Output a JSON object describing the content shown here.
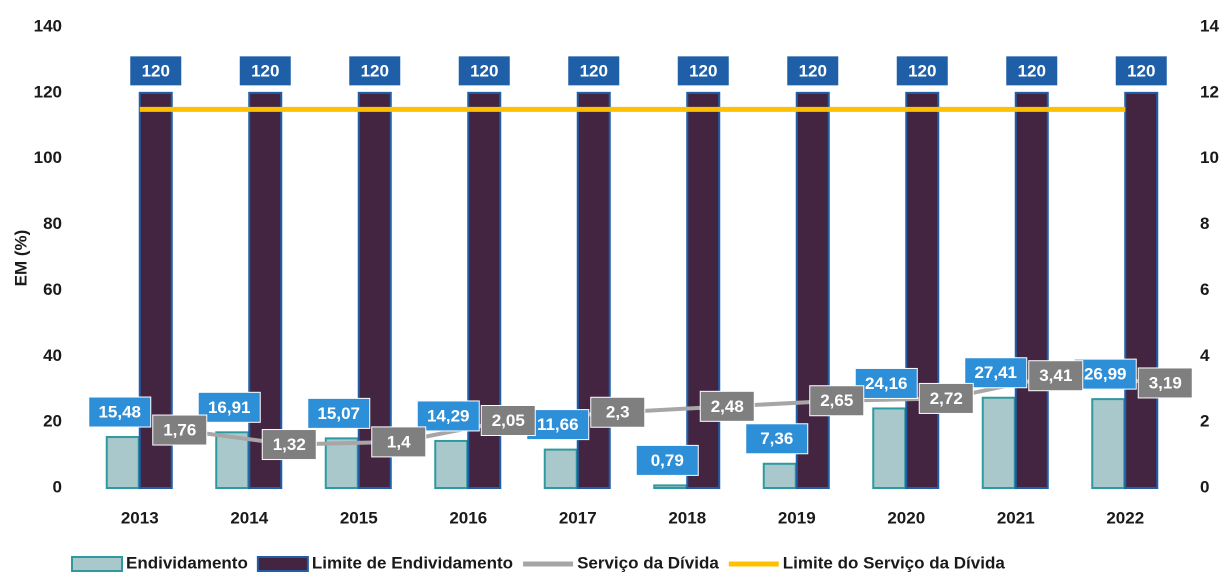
{
  "chart_data": {
    "type": "bar_line",
    "y_label": "EM (%)",
    "categories": [
      "2013",
      "2014",
      "2015",
      "2016",
      "2017",
      "2018",
      "2019",
      "2020",
      "2021",
      "2022"
    ],
    "series": [
      {
        "name": "Endividamento",
        "type": "bar",
        "color": "#a9c8cc",
        "stroke": "#2e9a9f",
        "values": [
          15.48,
          16.91,
          15.07,
          14.29,
          11.66,
          0.79,
          7.36,
          24.16,
          27.41,
          26.99
        ],
        "value_labels": [
          "15,48",
          "16,91",
          "15,07",
          "14,29",
          "11,66",
          "0,79",
          "7,36",
          "24,16",
          "27,41",
          "26,99"
        ]
      },
      {
        "name": "Limite de Endividamento",
        "type": "bar",
        "color": "#432542",
        "stroke": "#1f5fa8",
        "values": [
          120,
          120,
          120,
          120,
          120,
          120,
          120,
          120,
          120,
          120
        ]
      },
      {
        "name": "Serviço da Dívida",
        "type": "line",
        "axis": "y2",
        "color": "#a6a6a6",
        "values": [
          1.76,
          1.32,
          1.4,
          2.05,
          2.3,
          2.48,
          2.65,
          2.72,
          3.41,
          3.19
        ],
        "value_labels": [
          "1,76",
          "1,32",
          "1,4",
          "2,05",
          "2,3",
          "2,48",
          "2,65",
          "2,72",
          "3,41",
          "3,19"
        ]
      },
      {
        "name": "Limite do Serviço da Dívida",
        "type": "line",
        "axis": "y2",
        "color": "#ffc000",
        "values": [
          11.5,
          11.5,
          11.5,
          11.5,
          11.5,
          11.5,
          11.5,
          11.5,
          11.5,
          11.5
        ]
      }
    ],
    "ylim": [
      0,
      140
    ],
    "yticks": [
      0,
      20,
      40,
      60,
      80,
      100,
      120,
      140
    ],
    "y2lim": [
      0,
      14
    ],
    "y2ticks": [
      0,
      2,
      4,
      6,
      8,
      10,
      12,
      14
    ],
    "legend": "bottom"
  }
}
